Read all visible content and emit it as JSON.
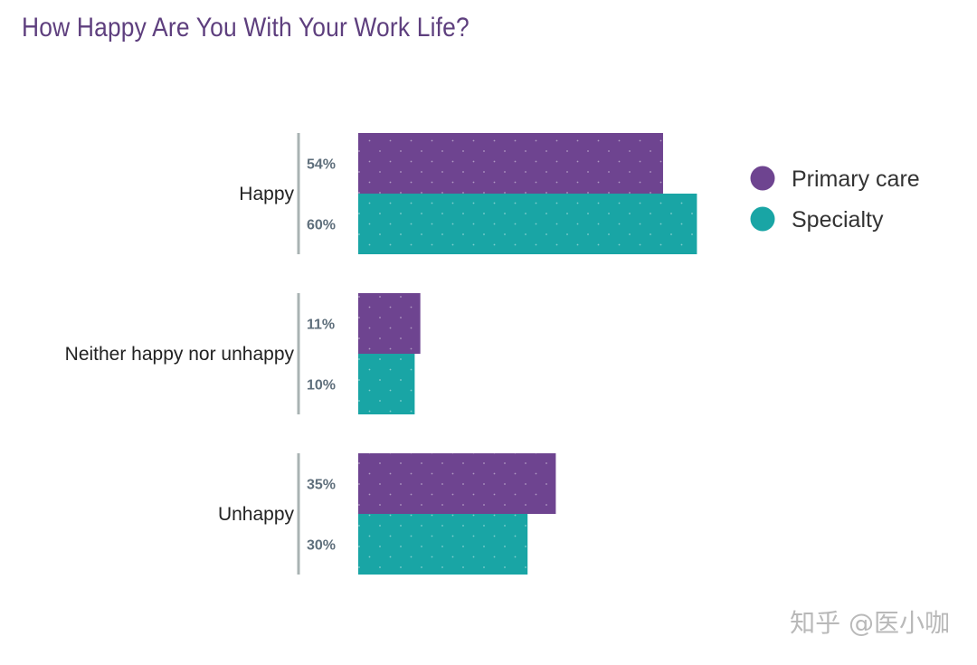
{
  "chart_data": {
    "type": "bar",
    "orientation": "horizontal",
    "title": "How Happy Are You With Your Work Life?",
    "categories": [
      "Happy",
      "Neither happy nor unhappy",
      "Unhappy"
    ],
    "series": [
      {
        "name": "Primary care",
        "values": [
          54,
          11,
          35
        ],
        "labels": [
          "54%",
          "11%",
          "35%"
        ],
        "color": "#6e4490"
      },
      {
        "name": "Specialty",
        "values": [
          60,
          10,
          30
        ],
        "labels": [
          "60%",
          "10%",
          "30%"
        ],
        "color": "#19a5a5"
      }
    ],
    "xlim": [
      0,
      100
    ],
    "legend_position": "right",
    "grid": false
  },
  "watermark": "知乎 @医小咖"
}
